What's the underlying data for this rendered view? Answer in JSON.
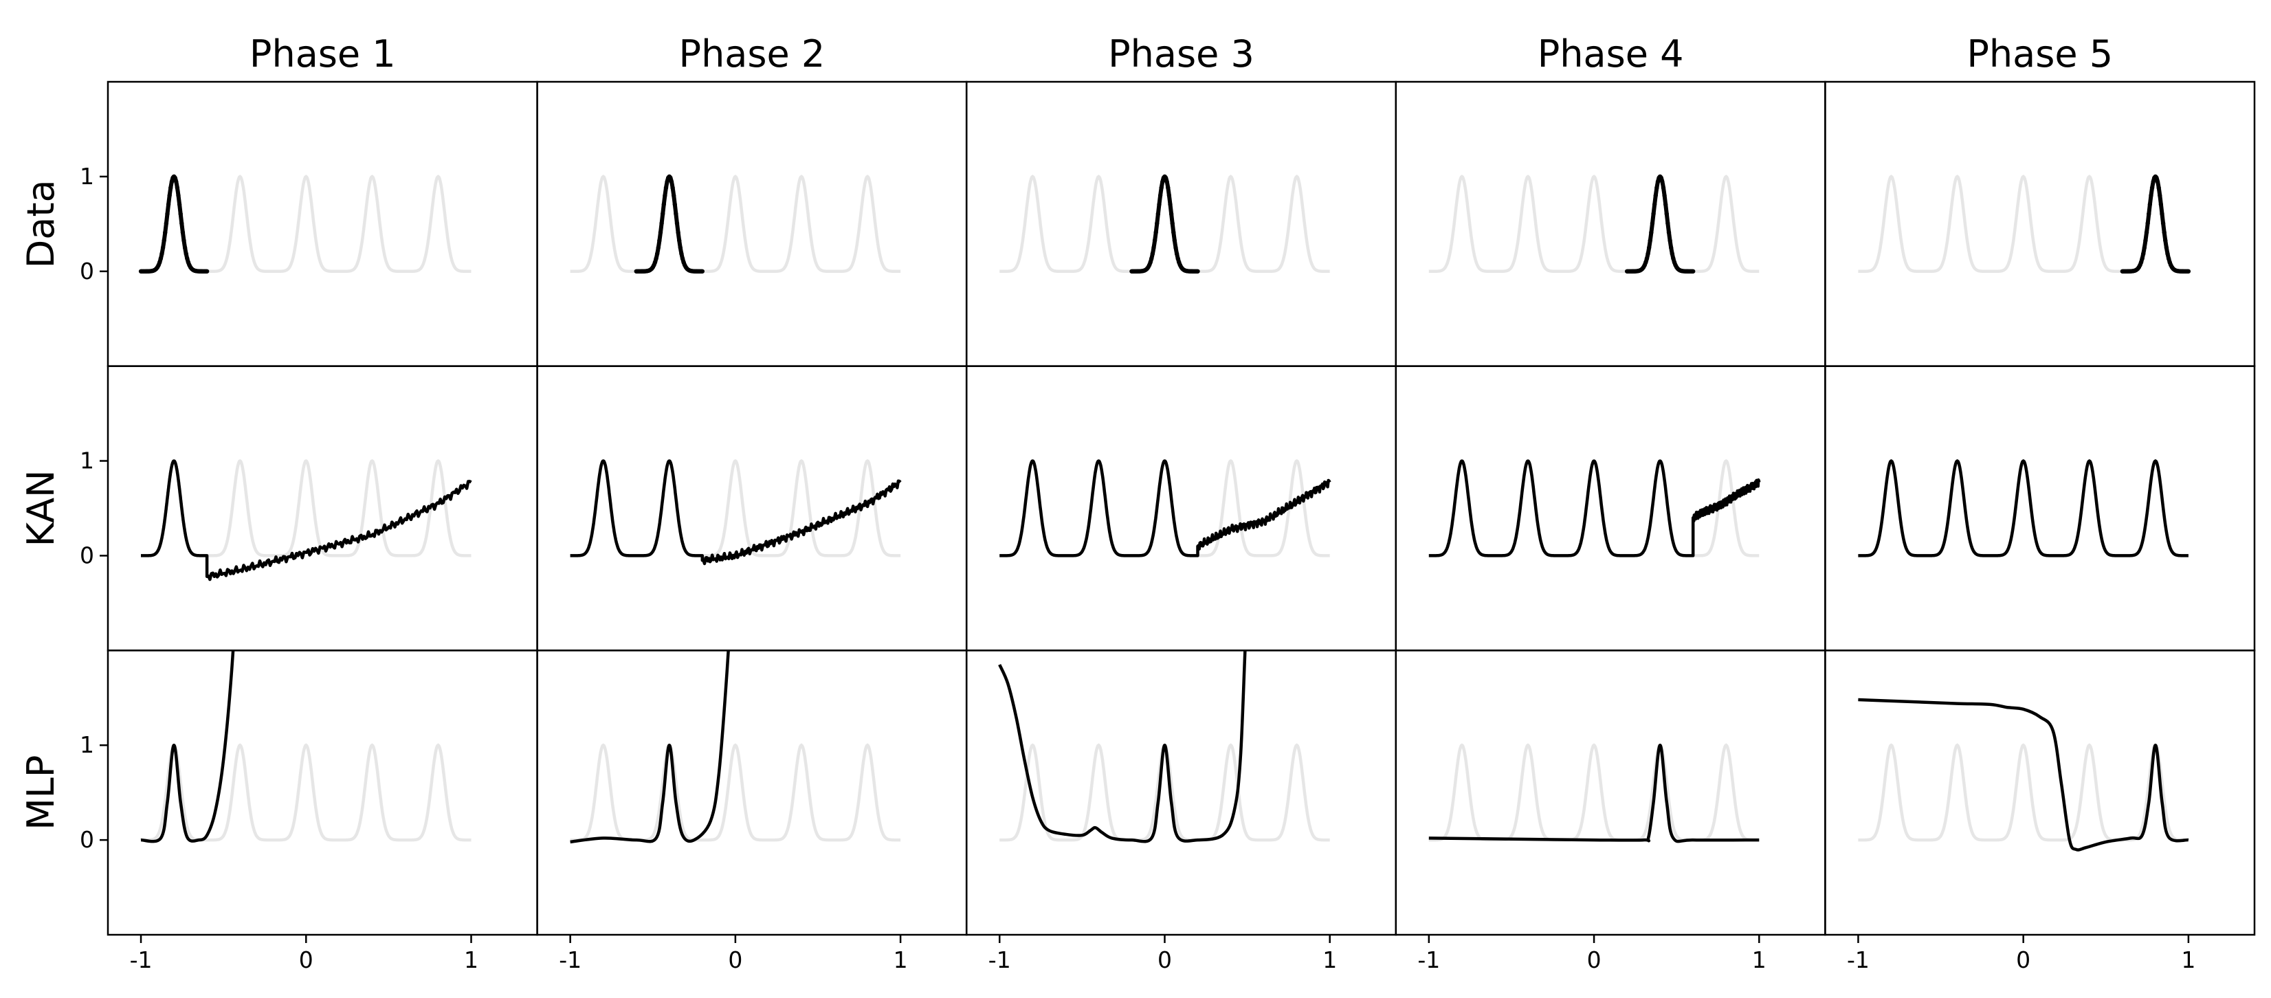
{
  "chart_data": {
    "type": "line",
    "layout": "grid",
    "column_titles": [
      "Phase 1",
      "Phase 2",
      "Phase 3",
      "Phase 4",
      "Phase 5"
    ],
    "row_labels": [
      "Data",
      "KAN",
      "MLP"
    ],
    "x_ticks": [
      -1,
      0,
      1
    ],
    "x_tick_labels": [
      "-1",
      "0",
      "1"
    ],
    "y_ticks": [
      0,
      1
    ],
    "y_tick_labels": [
      "0",
      "1"
    ],
    "xlim": [
      -1.2,
      1.4
    ],
    "ylim": [
      -1,
      2
    ],
    "colors": {
      "background": "#e6e6e6",
      "foreground": "#000000"
    },
    "background_series": {
      "name": "",
      "function": "sum of five Gaussian peaks",
      "peak_centers": [
        -0.8,
        -0.4,
        0.0,
        0.4,
        0.8
      ],
      "peak_height": 1,
      "x_range": [
        -1,
        1
      ]
    },
    "panels": [
      {
        "row": "Data",
        "columns": [
          {
            "phase": "Phase 1",
            "x_range": [
              -1.0,
              -0.6
            ],
            "peak_center": -0.8
          },
          {
            "phase": "Phase 2",
            "x_range": [
              -0.6,
              -0.2
            ],
            "peak_center": -0.4
          },
          {
            "phase": "Phase 3",
            "x_range": [
              -0.2,
              0.2
            ],
            "peak_center": 0.0
          },
          {
            "phase": "Phase 4",
            "x_range": [
              0.2,
              0.6
            ],
            "peak_center": 0.4
          },
          {
            "phase": "Phase 5",
            "x_range": [
              0.6,
              1.0
            ],
            "peak_center": 0.8
          }
        ]
      },
      {
        "row": "KAN",
        "columns": [
          {
            "phase": "Phase 1",
            "learned_peaks": [
              -0.8
            ],
            "tail_start_x": -0.6,
            "tail_points": [
              [
                -0.6,
                -0.22
              ],
              [
                -0.4,
                -0.15
              ],
              [
                0.0,
                0.03
              ],
              [
                0.4,
                0.22
              ],
              [
                0.8,
                0.55
              ],
              [
                1.0,
                0.78
              ]
            ]
          },
          {
            "phase": "Phase 2",
            "learned_peaks": [
              -0.8,
              -0.4
            ],
            "tail_start_x": -0.2,
            "tail_points": [
              [
                -0.2,
                -0.05
              ],
              [
                0.0,
                0.0
              ],
              [
                0.4,
                0.25
              ],
              [
                0.8,
                0.55
              ],
              [
                1.0,
                0.78
              ]
            ]
          },
          {
            "phase": "Phase 3",
            "learned_peaks": [
              -0.8,
              -0.4,
              0.0
            ],
            "tail_start_x": 0.2,
            "tail_points": [
              [
                0.2,
                0.1
              ],
              [
                0.4,
                0.28
              ],
              [
                0.6,
                0.36
              ],
              [
                0.8,
                0.57
              ],
              [
                1.0,
                0.78
              ]
            ]
          },
          {
            "phase": "Phase 4",
            "learned_peaks": [
              -0.8,
              -0.4,
              0.0,
              0.4
            ],
            "tail_start_x": 0.6,
            "tail_points": [
              [
                0.6,
                0.4
              ],
              [
                0.8,
                0.57
              ],
              [
                1.0,
                0.78
              ]
            ]
          },
          {
            "phase": "Phase 5",
            "learned_peaks": [
              -0.8,
              -0.4,
              0.0,
              0.4,
              0.8
            ],
            "tail_start_x": null,
            "tail_points": []
          }
        ]
      },
      {
        "row": "MLP",
        "columns": [
          {
            "phase": "Phase 1",
            "points": [
              [
                -1.0,
                0.0
              ],
              [
                -0.88,
                0.02
              ],
              [
                -0.84,
                0.4
              ],
              [
                -0.8,
                1.0
              ],
              [
                -0.76,
                0.4
              ],
              [
                -0.72,
                0.03
              ],
              [
                -0.65,
                0.0
              ],
              [
                -0.6,
                0.05
              ],
              [
                -0.55,
                0.3
              ],
              [
                -0.5,
                0.85
              ],
              [
                -0.45,
                1.8
              ],
              [
                -0.4,
                3.2
              ]
            ]
          },
          {
            "phase": "Phase 2",
            "points": [
              [
                -1.0,
                -0.02
              ],
              [
                -0.8,
                0.02
              ],
              [
                -0.6,
                0.0
              ],
              [
                -0.48,
                0.02
              ],
              [
                -0.44,
                0.4
              ],
              [
                -0.4,
                1.0
              ],
              [
                -0.36,
                0.4
              ],
              [
                -0.32,
                0.05
              ],
              [
                -0.25,
                0.0
              ],
              [
                -0.15,
                0.2
              ],
              [
                -0.1,
                0.7
              ],
              [
                -0.05,
                1.8
              ],
              [
                0.0,
                3.2
              ]
            ]
          },
          {
            "phase": "Phase 3",
            "points": [
              [
                -1.0,
                1.85
              ],
              [
                -0.95,
                1.65
              ],
              [
                -0.9,
                1.3
              ],
              [
                -0.85,
                0.85
              ],
              [
                -0.8,
                0.45
              ],
              [
                -0.75,
                0.2
              ],
              [
                -0.7,
                0.1
              ],
              [
                -0.6,
                0.06
              ],
              [
                -0.5,
                0.05
              ],
              [
                -0.45,
                0.1
              ],
              [
                -0.42,
                0.13
              ],
              [
                -0.38,
                0.08
              ],
              [
                -0.32,
                0.02
              ],
              [
                -0.2,
                0.0
              ],
              [
                -0.08,
                0.02
              ],
              [
                -0.04,
                0.4
              ],
              [
                0.0,
                1.0
              ],
              [
                0.04,
                0.4
              ],
              [
                0.08,
                0.03
              ],
              [
                0.2,
                0.0
              ],
              [
                0.35,
                0.05
              ],
              [
                0.42,
                0.3
              ],
              [
                0.46,
                0.9
              ],
              [
                0.5,
                2.5
              ],
              [
                0.55,
                3.5
              ]
            ]
          },
          {
            "phase": "Phase 4",
            "points": [
              [
                -1.0,
                0.02
              ],
              [
                -0.5,
                0.01
              ],
              [
                0.0,
                0.0
              ],
              [
                0.3,
                0.0
              ],
              [
                0.33,
                0.03
              ],
              [
                0.36,
                0.4
              ],
              [
                0.4,
                1.0
              ],
              [
                0.44,
                0.4
              ],
              [
                0.48,
                0.02
              ],
              [
                0.6,
                0.0
              ],
              [
                1.0,
                0.0
              ]
            ]
          },
          {
            "phase": "Phase 5",
            "points": [
              [
                -1.0,
                1.48
              ],
              [
                -0.7,
                1.46
              ],
              [
                -0.4,
                1.44
              ],
              [
                -0.2,
                1.43
              ],
              [
                -0.1,
                1.4
              ],
              [
                0.0,
                1.38
              ],
              [
                0.1,
                1.3
              ],
              [
                0.18,
                1.15
              ],
              [
                0.23,
                0.6
              ],
              [
                0.28,
                0.0
              ],
              [
                0.32,
                -0.1
              ],
              [
                0.38,
                -0.08
              ],
              [
                0.5,
                -0.02
              ],
              [
                0.65,
                0.02
              ],
              [
                0.72,
                0.05
              ],
              [
                0.76,
                0.4
              ],
              [
                0.8,
                1.0
              ],
              [
                0.84,
                0.4
              ],
              [
                0.88,
                0.03
              ],
              [
                1.0,
                0.0
              ]
            ]
          }
        ]
      }
    ]
  }
}
